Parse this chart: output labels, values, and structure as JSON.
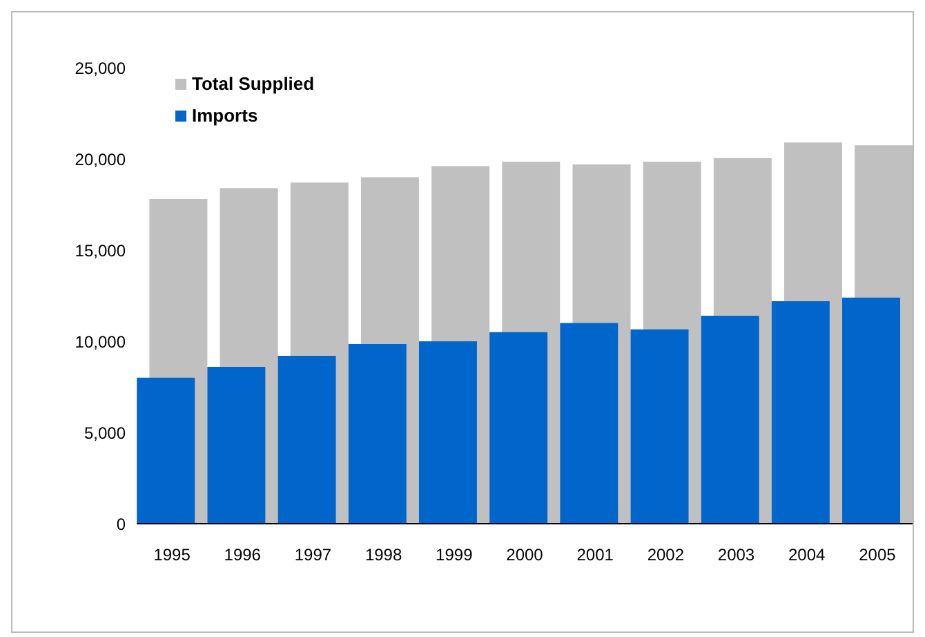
{
  "chart_data": {
    "type": "bar",
    "categories": [
      "1995",
      "1996",
      "1997",
      "1998",
      "1999",
      "2000",
      "2001",
      "2002",
      "2003",
      "2004",
      "2005"
    ],
    "series": [
      {
        "name": "Total Supplied",
        "color": "#c0c0c0",
        "values": [
          17800,
          18400,
          18700,
          19000,
          19600,
          19850,
          19700,
          19850,
          20050,
          20900,
          20750
        ]
      },
      {
        "name": "Imports",
        "color": "#0066cc",
        "values": [
          8000,
          8600,
          9200,
          9850,
          10000,
          10500,
          11000,
          10650,
          11400,
          12200,
          12400
        ]
      }
    ],
    "ylim": [
      0,
      25000
    ],
    "yticks": [
      0,
      {
        "value": 5000,
        "label": "5,000"
      },
      {
        "value": 10000,
        "label": "10,000"
      },
      {
        "value": 15000,
        "label": "15,000"
      },
      {
        "value": 20000,
        "label": "20,000"
      },
      {
        "value": 25000,
        "label": "25,000"
      }
    ],
    "grid": false,
    "legend": "top left"
  }
}
